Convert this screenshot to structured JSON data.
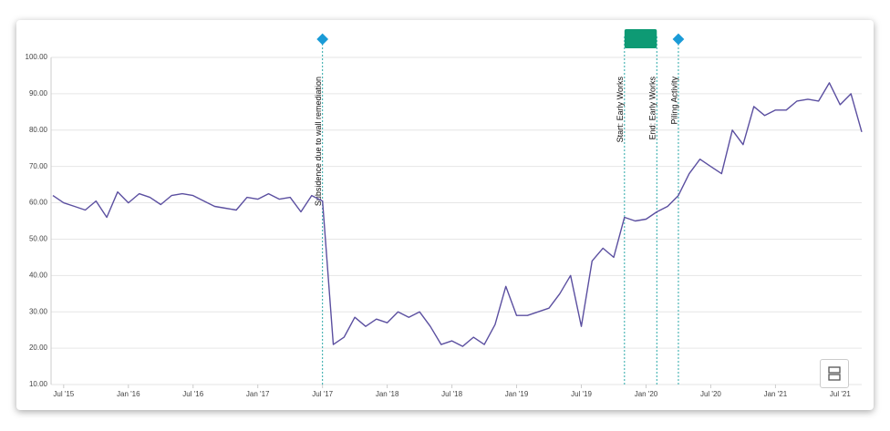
{
  "chart_data": {
    "type": "line",
    "x": [
      "2015-06",
      "2015-07",
      "2015-08",
      "2015-09",
      "2015-10",
      "2015-11",
      "2015-12",
      "2016-01",
      "2016-02",
      "2016-03",
      "2016-04",
      "2016-05",
      "2016-06",
      "2016-07",
      "2016-08",
      "2016-09",
      "2016-10",
      "2016-11",
      "2016-12",
      "2017-01",
      "2017-02",
      "2017-03",
      "2017-04",
      "2017-05",
      "2017-06",
      "2017-07",
      "2017-08",
      "2017-09",
      "2017-10",
      "2017-11",
      "2017-12",
      "2018-01",
      "2018-02",
      "2018-03",
      "2018-04",
      "2018-05",
      "2018-06",
      "2018-07",
      "2018-08",
      "2018-09",
      "2018-10",
      "2018-11",
      "2018-12",
      "2019-01",
      "2019-02",
      "2019-03",
      "2019-04",
      "2019-05",
      "2019-06",
      "2019-07",
      "2019-08",
      "2019-09",
      "2019-10",
      "2019-11",
      "2019-12",
      "2020-01",
      "2020-02",
      "2020-03",
      "2020-04",
      "2020-05",
      "2020-06",
      "2020-07",
      "2020-08",
      "2020-09",
      "2020-10",
      "2020-11",
      "2020-12",
      "2021-01",
      "2021-02",
      "2021-03",
      "2021-04",
      "2021-05",
      "2021-06",
      "2021-07",
      "2021-08",
      "2021-09"
    ],
    "series": [
      {
        "color": "#5b4fa0",
        "values": [
          62,
          60,
          59,
          58,
          60.5,
          56,
          63,
          60,
          62.5,
          61.5,
          59.5,
          62,
          62.5,
          62,
          60.5,
          59,
          58.5,
          58,
          61.5,
          61,
          62.5,
          61,
          61.5,
          57.5,
          62,
          60.5,
          21,
          23,
          28.5,
          26,
          28,
          27,
          30,
          28.5,
          30,
          26,
          21,
          22,
          20.5,
          23,
          21,
          26.5,
          37,
          29,
          29,
          30,
          31,
          35,
          40,
          26,
          44,
          47.5,
          45,
          56,
          55,
          55.5,
          57.5,
          59,
          62,
          68,
          72,
          70,
          68,
          80,
          76,
          86.5,
          84,
          85.5,
          85.5,
          88,
          88.5,
          88,
          93,
          87,
          90,
          79.5
        ]
      }
    ],
    "xlim": [
      "2015-06",
      "2021-09"
    ],
    "xticks": [
      {
        "value": "2015-07",
        "label": "Jul '15"
      },
      {
        "value": "2016-01",
        "label": "Jan '16"
      },
      {
        "value": "2016-07",
        "label": "Jul '16"
      },
      {
        "value": "2017-01",
        "label": "Jan '17"
      },
      {
        "value": "2017-07",
        "label": "Jul '17"
      },
      {
        "value": "2018-01",
        "label": "Jan '18"
      },
      {
        "value": "2018-07",
        "label": "Jul '18"
      },
      {
        "value": "2019-01",
        "label": "Jan '19"
      },
      {
        "value": "2019-07",
        "label": "Jul '19"
      },
      {
        "value": "2020-01",
        "label": "Jan '20"
      },
      {
        "value": "2020-07",
        "label": "Jul '20"
      },
      {
        "value": "2021-01",
        "label": "Jan '21"
      },
      {
        "value": "2021-07",
        "label": "Jul '21"
      }
    ],
    "ylim": [
      10,
      100
    ],
    "yticks": [
      {
        "value": 10,
        "label": "10.00"
      },
      {
        "value": 20,
        "label": "20.00"
      },
      {
        "value": 30,
        "label": "30.00"
      },
      {
        "value": 40,
        "label": "40.00"
      },
      {
        "value": 50,
        "label": "50.00"
      },
      {
        "value": 60,
        "label": "60.00"
      },
      {
        "value": 70,
        "label": "70.00"
      },
      {
        "value": 80,
        "label": "80.00"
      },
      {
        "value": 90,
        "label": "90.00"
      },
      {
        "value": 100,
        "label": "100.00"
      }
    ],
    "grid": true,
    "annotations": [
      {
        "x": "2017-07",
        "label": "Subsidence due to wall remediation",
        "marker": "diamond"
      },
      {
        "x": "2019-11",
        "label": "Start: Early Works",
        "marker": "range-start"
      },
      {
        "x": "2020-02",
        "label": "End: Early Works",
        "marker": "range-end"
      },
      {
        "x": "2020-04",
        "label": "Piling Activity",
        "marker": "diamond"
      }
    ],
    "annotation_line_color": "#2aa8a8",
    "diamond_color": "#1a9bd7",
    "range_color": "#0e9a74"
  }
}
